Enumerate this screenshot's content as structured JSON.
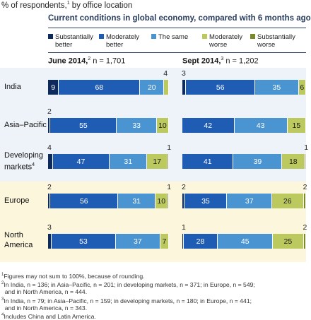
{
  "header": {
    "subtitle_pre": "% of respondents,",
    "subtitle_sup": "1",
    "subtitle_post": " by office location",
    "headline": "Current conditions in global economy, compared with 6 months ago"
  },
  "colors": {
    "substantially_better": "#0d2a5c",
    "moderately_better": "#1f5cb4",
    "the_same": "#4a94d1",
    "moderately_worse": "#bcc95e",
    "substantially_worse": "#7a8a2a",
    "band_blue": "#eef3f9",
    "band_yellow": "#fbf6dc"
  },
  "chart_data": {
    "type": "bar",
    "orientation": "horizontal-stacked",
    "legend": [
      {
        "key": "substantially_better",
        "line1": "Substantially",
        "line2": "better"
      },
      {
        "key": "moderately_better",
        "line1": "Moderately",
        "line2": "better"
      },
      {
        "key": "the_same",
        "line1": "The same",
        "line2": ""
      },
      {
        "key": "moderately_worse",
        "line1": "Moderately",
        "line2": "worse"
      },
      {
        "key": "substantially_worse",
        "line1": "Substantially",
        "line2": "worse"
      }
    ],
    "panels": [
      {
        "title": "June 2014,",
        "sup": "2",
        "n": " n = 1,701"
      },
      {
        "title": "Sept 2014,",
        "sup": "3",
        "n": " n = 1,202"
      }
    ],
    "rows": [
      {
        "label_line1": "India",
        "label_line2": "",
        "label_sup": "",
        "june": [
          9,
          68,
          20,
          4,
          0
        ],
        "sept": [
          3,
          56,
          35,
          6,
          0
        ]
      },
      {
        "label_line1": "Asia–Pacific",
        "label_line2": "",
        "label_sup": "",
        "june": [
          2,
          55,
          33,
          10,
          0
        ],
        "sept": [
          0,
          42,
          43,
          15,
          0
        ]
      },
      {
        "label_line1": "Developing",
        "label_line2": "markets",
        "label_sup": "4",
        "june": [
          4,
          47,
          31,
          17,
          1
        ],
        "sept": [
          0,
          41,
          39,
          18,
          1
        ]
      },
      {
        "label_line1": "Europe",
        "label_line2": "",
        "label_sup": "",
        "june": [
          2,
          56,
          31,
          10,
          1
        ],
        "sept": [
          2,
          35,
          37,
          26,
          2
        ]
      },
      {
        "label_line1": "North",
        "label_line2": "America",
        "label_sup": "",
        "june": [
          3,
          53,
          37,
          7,
          0
        ],
        "sept": [
          1,
          28,
          45,
          25,
          2
        ]
      }
    ]
  },
  "footnotes": [
    {
      "sup": "1",
      "text": "Figures may not sum to 100%, because of rounding."
    },
    {
      "sup": "2",
      "text": "In India, n = 136; in Asia–Pacific, n = 201; in developing markets, n = 371; in Europe, n = 549;"
    },
    {
      "sup": "",
      "text": "  and in North America, n = 444."
    },
    {
      "sup": "3",
      "text": "In India, n = 79; in Asia–Pacific, n = 159; in developing markets, n = 180; in Europe, n = 441;"
    },
    {
      "sup": "",
      "text": "  and in North America, n = 343."
    },
    {
      "sup": "4",
      "text": "Includes China and Latin America."
    }
  ]
}
